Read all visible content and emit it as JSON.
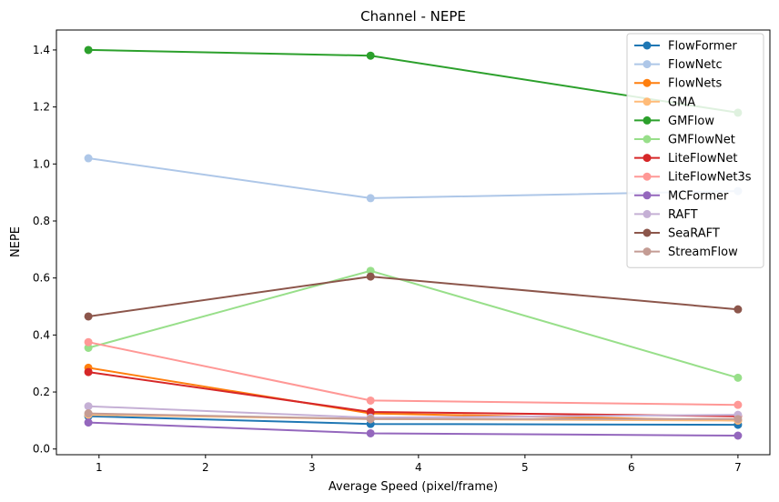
{
  "chart_data": {
    "type": "line",
    "title": "Channel - NEPE",
    "xlabel": "Average Speed (pixel/frame)",
    "ylabel": "NEPE",
    "xlim": [
      0.6,
      7.3
    ],
    "ylim": [
      -0.02,
      1.47
    ],
    "x": [
      0.9,
      3.55,
      7.0
    ],
    "xticks": [
      1,
      2,
      3,
      4,
      5,
      6,
      7
    ],
    "yticks": [
      0.0,
      0.2,
      0.4,
      0.6,
      0.8,
      1.0,
      1.2,
      1.4
    ],
    "xtick_labels": [
      "1",
      "2",
      "3",
      "4",
      "5",
      "6",
      "7"
    ],
    "ytick_labels": [
      "0.0",
      "0.2",
      "0.4",
      "0.6",
      "0.8",
      "1.0",
      "1.2",
      "1.4"
    ],
    "legend_position": "top-right",
    "grid": false,
    "series": [
      {
        "name": "FlowFormer",
        "color": "#1f77b4",
        "values": [
          0.115,
          0.088,
          0.085
        ]
      },
      {
        "name": "FlowNetc",
        "color": "#aec7e8",
        "values": [
          1.02,
          0.88,
          0.905
        ]
      },
      {
        "name": "FlowNets",
        "color": "#ff7f0e",
        "values": [
          0.285,
          0.125,
          0.1
        ]
      },
      {
        "name": "GMA",
        "color": "#ffbb78",
        "values": [
          0.12,
          0.105,
          0.1
        ]
      },
      {
        "name": "GMFlow",
        "color": "#2ca02c",
        "values": [
          1.4,
          1.38,
          1.18
        ]
      },
      {
        "name": "GMFlowNet",
        "color": "#98df8a",
        "values": [
          0.355,
          0.625,
          0.25
        ]
      },
      {
        "name": "LiteFlowNet",
        "color": "#d62728",
        "values": [
          0.27,
          0.13,
          0.115
        ]
      },
      {
        "name": "LiteFlowNet3s",
        "color": "#ff9896",
        "values": [
          0.375,
          0.17,
          0.155
        ]
      },
      {
        "name": "MCFormer",
        "color": "#9467bd",
        "values": [
          0.093,
          0.055,
          0.047
        ]
      },
      {
        "name": "RAFT",
        "color": "#c5b0d5",
        "values": [
          0.15,
          0.11,
          0.12
        ]
      },
      {
        "name": "SeaRAFT",
        "color": "#8c564b",
        "values": [
          0.465,
          0.605,
          0.49
        ]
      },
      {
        "name": "StreamFlow",
        "color": "#c49c94",
        "values": [
          0.125,
          0.105,
          0.105
        ]
      }
    ]
  }
}
